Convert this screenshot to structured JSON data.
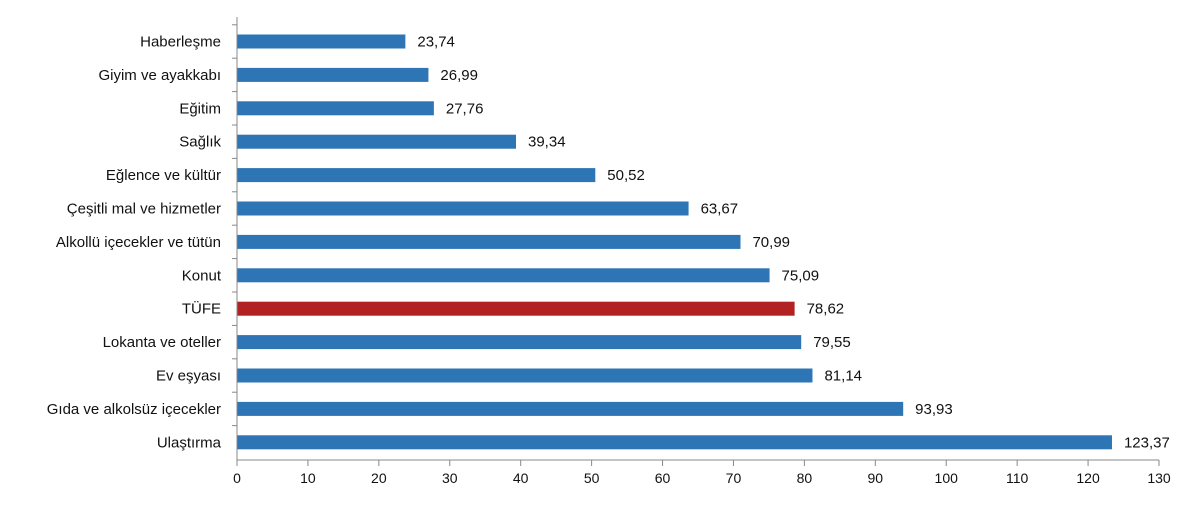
{
  "chart_data": {
    "type": "bar",
    "orientation": "horizontal",
    "categories": [
      "Haberleşme",
      "Giyim ve ayakkabı",
      "Eğitim",
      "Sağlık",
      "Eğlence ve kültür",
      "Çeşitli mal ve hizmetler",
      "Alkollü içecekler ve tütün",
      "Konut",
      "TÜFE",
      "Lokanta ve oteller",
      "Ev eşyası",
      "Gıda ve alkolsüz içecekler",
      "Ulaştırma"
    ],
    "values": [
      23.74,
      26.99,
      27.76,
      39.34,
      50.52,
      63.67,
      70.99,
      75.09,
      78.62,
      79.55,
      81.14,
      93.93,
      123.37
    ],
    "value_labels": [
      "23,74",
      "26,99",
      "27,76",
      "39,34",
      "50,52",
      "63,67",
      "70,99",
      "75,09",
      "78,62",
      "79,55",
      "81,14",
      "93,93",
      "123,37"
    ],
    "highlight_category": "TÜFE",
    "xlim": [
      0,
      130
    ],
    "xticks": [
      0,
      10,
      20,
      30,
      40,
      50,
      60,
      70,
      80,
      90,
      100,
      110,
      120,
      130
    ],
    "grid": false,
    "legend": "none",
    "title": "",
    "xlabel": "",
    "ylabel": "",
    "colors": {
      "bar": "#2E75B6",
      "highlight": "#B22222",
      "axis": "#888888",
      "text": "#111111"
    }
  }
}
